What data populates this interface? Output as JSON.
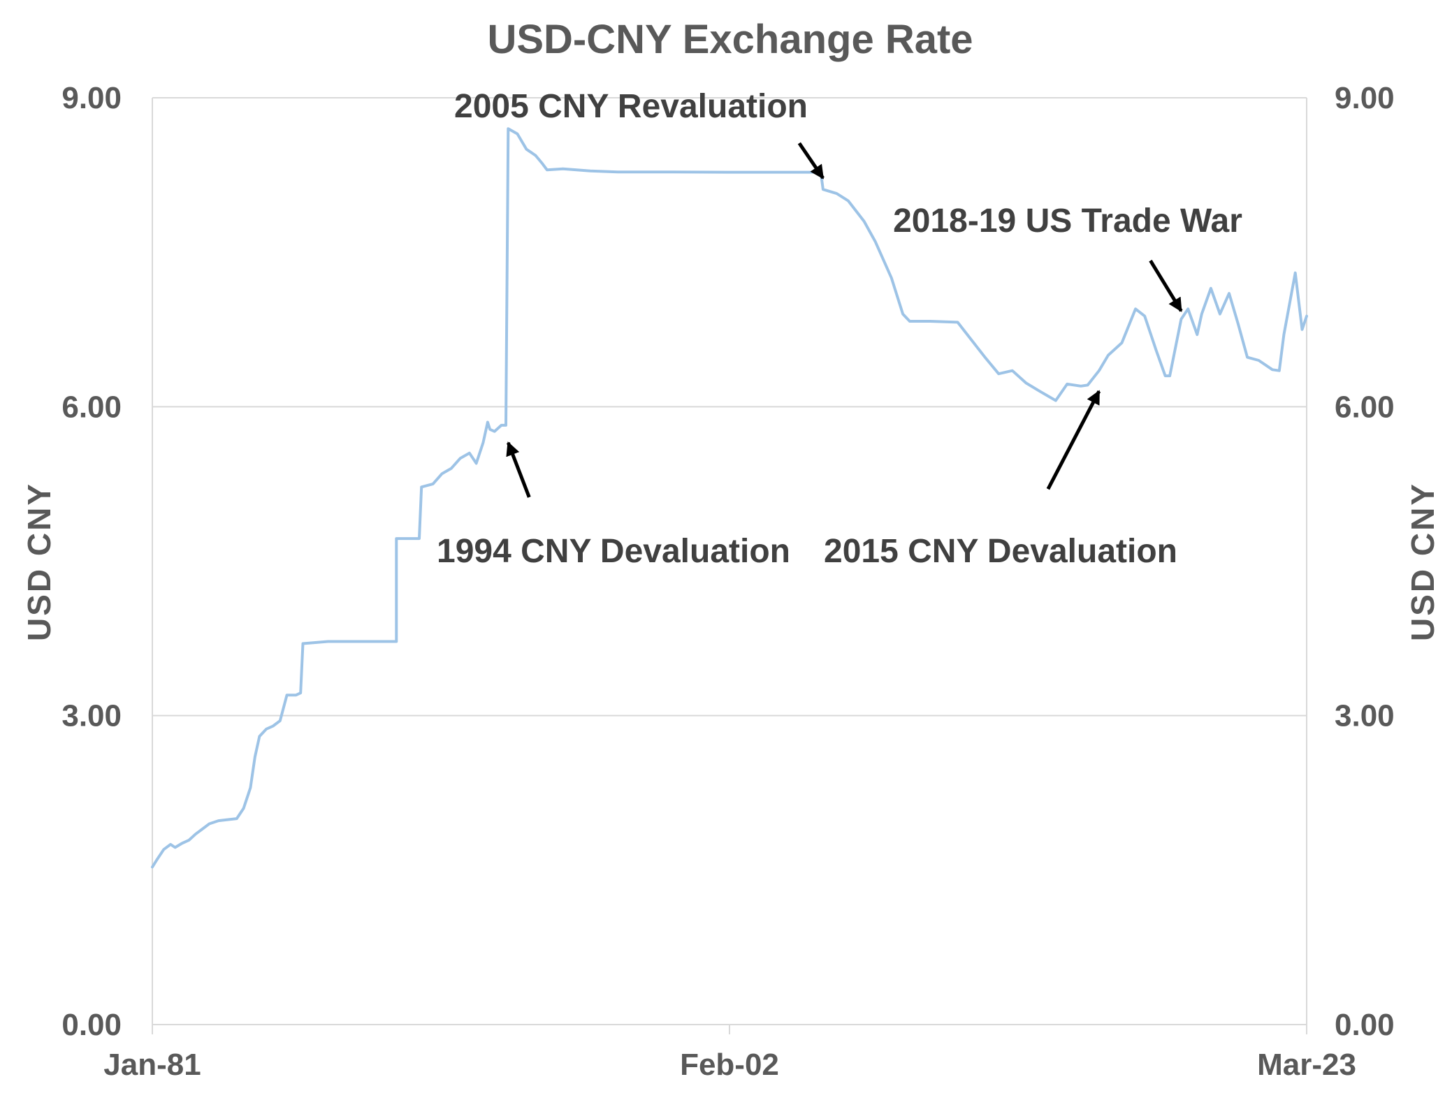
{
  "chart_data": {
    "type": "line",
    "title": "USD-CNY Exchange Rate",
    "ylabel_left": "USD  CNY",
    "ylabel_right": "USD  CNY",
    "ylim": [
      0,
      9
    ],
    "y_ticks": [
      "0.00",
      "3.00",
      "6.00",
      "9.00"
    ],
    "x_range": [
      "1981-01",
      "2023-03"
    ],
    "x_ticks": [
      {
        "date": "1981-01",
        "label": "Jan-81"
      },
      {
        "date": "2002-02",
        "label": "Feb-02"
      },
      {
        "date": "2023-03",
        "label": "Mar-23"
      }
    ],
    "grid": true,
    "series_color": "#9dc3e6",
    "annotation_color": "#000000",
    "series": [
      {
        "name": "",
        "points": [
          [
            "1981-01",
            1.53
          ],
          [
            "1981-03",
            1.6
          ],
          [
            "1981-06",
            1.7
          ],
          [
            "1981-09",
            1.75
          ],
          [
            "1981-11",
            1.72
          ],
          [
            "1982-02",
            1.76
          ],
          [
            "1982-05",
            1.79
          ],
          [
            "1982-08",
            1.85
          ],
          [
            "1982-11",
            1.9
          ],
          [
            "1983-02",
            1.95
          ],
          [
            "1983-06",
            1.98
          ],
          [
            "1983-10",
            1.99
          ],
          [
            "1984-02",
            2.0
          ],
          [
            "1984-05",
            2.1
          ],
          [
            "1984-08",
            2.3
          ],
          [
            "1984-10",
            2.6
          ],
          [
            "1984-12",
            2.8
          ],
          [
            "1985-03",
            2.87
          ],
          [
            "1985-06",
            2.9
          ],
          [
            "1985-09",
            2.95
          ],
          [
            "1985-12",
            3.2
          ],
          [
            "1986-04",
            3.2
          ],
          [
            "1986-06",
            3.22
          ],
          [
            "1986-07",
            3.7
          ],
          [
            "1987-06",
            3.72
          ],
          [
            "1988-06",
            3.72
          ],
          [
            "1989-12",
            3.72
          ],
          [
            "1989-12",
            4.72
          ],
          [
            "1990-10",
            4.72
          ],
          [
            "1990-11",
            5.22
          ],
          [
            "1991-04",
            5.25
          ],
          [
            "1991-08",
            5.35
          ],
          [
            "1991-12",
            5.4
          ],
          [
            "1992-04",
            5.5
          ],
          [
            "1992-08",
            5.55
          ],
          [
            "1992-11",
            5.45
          ],
          [
            "1993-02",
            5.65
          ],
          [
            "1993-04",
            5.85
          ],
          [
            "1993-05",
            5.78
          ],
          [
            "1993-07",
            5.76
          ],
          [
            "1993-10",
            5.82
          ],
          [
            "1993-12",
            5.82
          ],
          [
            "1994-01",
            8.7
          ],
          [
            "1994-05",
            8.65
          ],
          [
            "1994-09",
            8.5
          ],
          [
            "1995-01",
            8.44
          ],
          [
            "1995-04",
            8.36
          ],
          [
            "1995-06",
            8.3
          ],
          [
            "1996-01",
            8.31
          ],
          [
            "1997-01",
            8.29
          ],
          [
            "1998-01",
            8.28
          ],
          [
            "2000-01",
            8.28
          ],
          [
            "2002-01",
            8.277
          ],
          [
            "2004-01",
            8.277
          ],
          [
            "2005-06",
            8.277
          ],
          [
            "2005-07",
            8.11
          ],
          [
            "2006-01",
            8.07
          ],
          [
            "2006-06",
            8.0
          ],
          [
            "2007-01",
            7.8
          ],
          [
            "2007-06",
            7.6
          ],
          [
            "2008-01",
            7.25
          ],
          [
            "2008-06",
            6.9
          ],
          [
            "2008-09",
            6.83
          ],
          [
            "2009-06",
            6.83
          ],
          [
            "2010-06",
            6.82
          ],
          [
            "2010-12",
            6.65
          ],
          [
            "2011-06",
            6.48
          ],
          [
            "2011-12",
            6.32
          ],
          [
            "2012-06",
            6.35
          ],
          [
            "2012-12",
            6.23
          ],
          [
            "2013-06",
            6.15
          ],
          [
            "2014-01",
            6.06
          ],
          [
            "2014-06",
            6.22
          ],
          [
            "2014-12",
            6.2
          ],
          [
            "2015-03",
            6.21
          ],
          [
            "2015-08",
            6.35
          ],
          [
            "2015-12",
            6.5
          ],
          [
            "2016-06",
            6.62
          ],
          [
            "2016-12",
            6.95
          ],
          [
            "2017-04",
            6.88
          ],
          [
            "2017-09",
            6.55
          ],
          [
            "2018-01",
            6.3
          ],
          [
            "2018-03",
            6.3
          ],
          [
            "2018-08",
            6.85
          ],
          [
            "2018-11",
            6.95
          ],
          [
            "2019-03",
            6.7
          ],
          [
            "2019-05",
            6.9
          ],
          [
            "2019-09",
            7.15
          ],
          [
            "2020-01",
            6.9
          ],
          [
            "2020-05",
            7.1
          ],
          [
            "2020-09",
            6.8
          ],
          [
            "2021-01",
            6.48
          ],
          [
            "2021-06",
            6.45
          ],
          [
            "2021-12",
            6.36
          ],
          [
            "2022-03",
            6.35
          ],
          [
            "2022-05",
            6.7
          ],
          [
            "2022-10",
            7.3
          ],
          [
            "2023-01",
            6.75
          ],
          [
            "2023-03",
            6.88
          ]
        ]
      }
    ],
    "annotations": [
      {
        "text": "2005 CNY Revaluation",
        "arrow_target": [
          "2005-07",
          8.22
        ]
      },
      {
        "text": "2018-19 US Trade War",
        "arrow_target": [
          "2018-08",
          6.93
        ]
      },
      {
        "text": "1994  CNY Devaluation",
        "arrow_target": [
          "1994-01",
          5.65
        ]
      },
      {
        "text": "2015 CNY Devaluation",
        "arrow_target": [
          "2015-08",
          6.15
        ]
      }
    ]
  }
}
